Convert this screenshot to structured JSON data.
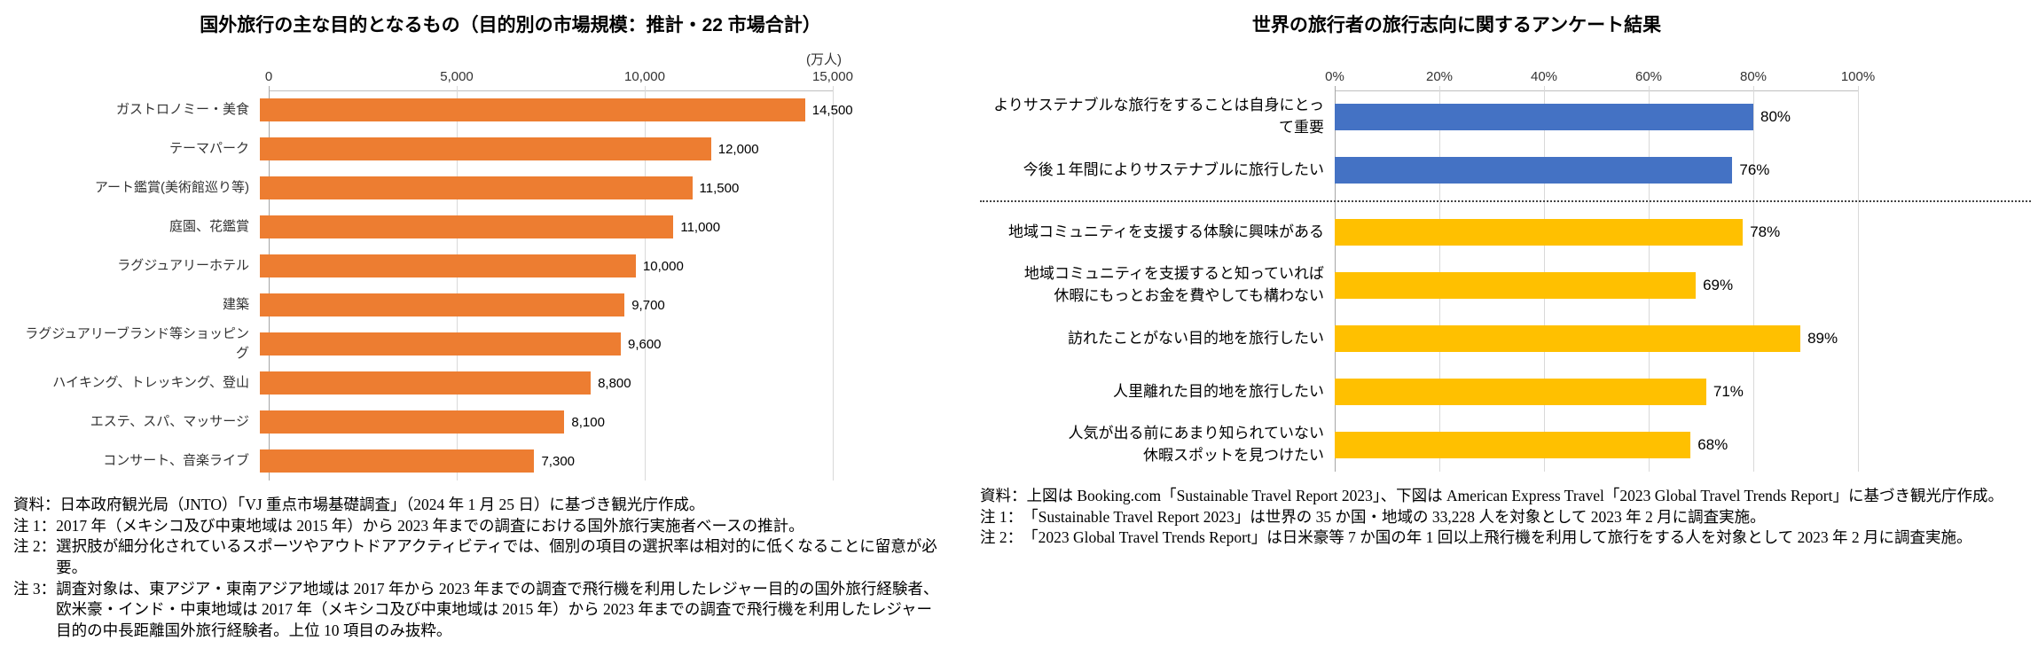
{
  "chart_data": [
    {
      "type": "bar",
      "orientation": "horizontal",
      "title": "国外旅行の主な目的となるもの（目的別の市場規模：推計・22 市場合計）",
      "unit_label": "(万人)",
      "categories": [
        "ガストロノミー・美食",
        "テーマパーク",
        "アート鑑賞(美術館巡り等)",
        "庭園、花鑑賞",
        "ラグジュアリーホテル",
        "建築",
        "ラグジュアリーブランド等ショッピング",
        "ハイキング、トレッキング、登山",
        "エステ、スパ、マッサージ",
        "コンサート、音楽ライブ"
      ],
      "values": [
        14500,
        12000,
        11500,
        11000,
        10000,
        9700,
        9600,
        8800,
        8100,
        7300
      ],
      "value_labels": [
        "14,500",
        "12,000",
        "11,500",
        "11,000",
        "10,000",
        "9,700",
        "9,600",
        "8,800",
        "8,100",
        "7,300"
      ],
      "xlim": [
        0,
        15000
      ],
      "x_tick_values": [
        0,
        5000,
        10000,
        15000
      ],
      "x_tick_labels": [
        "0",
        "5,000",
        "10,000",
        "15,000"
      ],
      "bar_color": "#ED7D31",
      "grid": true,
      "axis_position": "top",
      "legend": "none"
    },
    {
      "type": "bar",
      "orientation": "horizontal",
      "title": "世界の旅行者の旅行志向に関するアンケート結果",
      "categories": [
        "よりサステナブルな旅行をすることは自身にとって重要",
        "今後１年間によりサステナブルに旅行したい",
        "地域コミュニティを支援する体験に興味がある",
        "地域コミュニティを支援すると知っていれば\n休暇にもっとお金を費やしても構わない",
        "訪れたことがない目的地を旅行したい",
        "人里離れた目的地を旅行したい",
        "人気が出る前にあまり知られていない\n休暇スポットを見つけたい"
      ],
      "values": [
        80,
        76,
        78,
        69,
        89,
        71,
        68
      ],
      "value_labels": [
        "80%",
        "76%",
        "78%",
        "69%",
        "89%",
        "71%",
        "68%"
      ],
      "xlim": [
        0,
        100
      ],
      "x_tick_values": [
        0,
        20,
        40,
        60,
        80,
        100
      ],
      "x_tick_labels": [
        "0%",
        "20%",
        "40%",
        "60%",
        "80%",
        "100%"
      ],
      "bar_colors": [
        "#4472C4",
        "#4472C4",
        "#FFC000",
        "#FFC000",
        "#FFC000",
        "#FFC000",
        "#FFC000"
      ],
      "separator_after": 1,
      "grid": true,
      "axis_position": "top",
      "legend": "none"
    }
  ],
  "panels": [
    {
      "footnotes": [
        {
          "label": "資料：",
          "text": "日本政府観光局（JNTO）「VJ 重点市場基礎調査」（2024 年 1 月 25 日）に基づき観光庁作成。"
        },
        {
          "label": "注 1：",
          "text": "2017 年（メキシコ及び中東地域は 2015 年）から 2023 年までの調査における国外旅行実施者ベースの推計。"
        },
        {
          "label": "注 2：",
          "text": "選択肢が細分化されているスポーツやアウトドアアクティビティでは、個別の項目の選択率は相対的に低くなることに留意が必要。"
        },
        {
          "label": "注 3：",
          "text": "調査対象は、東アジア・東南アジア地域は 2017 年から 2023 年までの調査で飛行機を利用したレジャー目的の国外旅行経験者、欧米豪・インド・中東地域は 2017 年（メキシコ及び中東地域は 2015 年）から 2023 年までの調査で飛行機を利用したレジャー目的の中長距離国外旅行経験者。上位 10 項目のみ抜粋。"
        }
      ]
    },
    {
      "footnotes": [
        {
          "label": "資料：",
          "text": "上図は Booking.com「Sustainable Travel Report 2023」、下図は American Express Travel「2023 Global Travel Trends Report」に基づき観光庁作成。"
        },
        {
          "label": "注 1：",
          "text": "「Sustainable Travel Report 2023」は世界の 35 か国・地域の 33,228 人を対象として 2023 年 2 月に調査実施。"
        },
        {
          "label": "注 2：",
          "text": "「2023 Global Travel Trends Report」は日米豪等 7 か国の年 1 回以上飛行機を利用して旅行をする人を対象として 2023 年 2 月に調査実施。"
        }
      ]
    }
  ],
  "colors": {
    "orange": "#ED7D31",
    "blue": "#4472C4",
    "yellow": "#FFC000",
    "gridline": "#D9D9D9",
    "axis_line": "#BFBFBF"
  }
}
